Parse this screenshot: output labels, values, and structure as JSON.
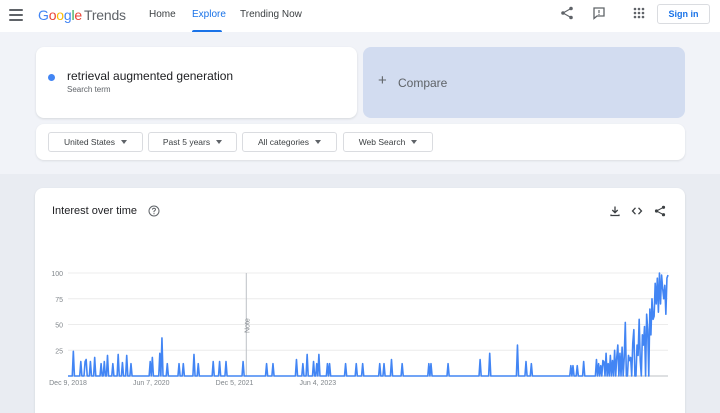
{
  "header": {
    "logo": {
      "letters": [
        "G",
        "o",
        "o",
        "g",
        "l",
        "e"
      ],
      "product": "Trends"
    },
    "tabs": [
      {
        "label": "Home",
        "active": false
      },
      {
        "label": "Explore",
        "active": true
      },
      {
        "label": "Trending Now",
        "active": false
      }
    ],
    "icons": [
      "share-icon",
      "feedback-icon",
      "apps-grid-icon"
    ],
    "signin_label": "Sign in"
  },
  "search": {
    "term": "retrieval augmented generation",
    "subtitle": "Search term",
    "term_color": "#4285f4",
    "compare_label": "Compare"
  },
  "filters": [
    {
      "label": "United States"
    },
    {
      "label": "Past 5 years"
    },
    {
      "label": "All categories"
    },
    {
      "label": "Web Search"
    }
  ],
  "interest_card": {
    "title": "Interest over time",
    "icons": [
      "help-circle-icon",
      "download-icon",
      "embed-code-icon",
      "share-icon"
    ]
  },
  "chart_data": {
    "type": "line",
    "title": "",
    "xlabel": "",
    "ylabel": "",
    "ylim": [
      0,
      100
    ],
    "yticks": [
      0,
      25,
      50,
      75,
      100
    ],
    "ytick_labels": [
      "25",
      "50",
      "75",
      "100"
    ],
    "x_tick_labels": [
      "Dec 9, 2018",
      "Jun 7, 2020",
      "Dec 5, 2021",
      "Jun 4, 2023"
    ],
    "x_tick_weeks": [
      0,
      78,
      156,
      234
    ],
    "note_label": "Note",
    "note_week": 167,
    "series_color": "#4285f4",
    "grid": true,
    "series": [
      {
        "values": [
          0,
          0,
          0,
          0,
          0,
          24,
          0,
          0,
          0,
          0,
          0,
          0,
          14,
          0,
          0,
          0,
          14,
          16,
          0,
          0,
          0,
          14,
          0,
          0,
          0,
          18,
          0,
          0,
          0,
          0,
          0,
          12,
          0,
          0,
          14,
          0,
          0,
          20,
          0,
          0,
          0,
          0,
          12,
          0,
          0,
          0,
          0,
          21,
          0,
          0,
          0,
          13,
          0,
          0,
          0,
          20,
          0,
          0,
          0,
          12,
          0,
          0,
          0,
          0,
          0,
          0,
          0,
          0,
          0,
          0,
          0,
          0,
          0,
          0,
          0,
          0,
          0,
          14,
          0,
          18,
          0,
          0,
          0,
          0,
          0,
          0,
          22,
          0,
          37,
          0,
          0,
          0,
          0,
          12,
          0,
          0,
          0,
          0,
          0,
          0,
          0,
          0,
          0,
          0,
          12,
          0,
          0,
          0,
          12,
          0,
          0,
          0,
          0,
          0,
          0,
          0,
          0,
          0,
          21,
          0,
          0,
          0,
          12,
          0,
          0,
          0,
          0,
          0,
          0,
          0,
          0,
          0,
          0,
          0,
          0,
          0,
          14,
          0,
          0,
          0,
          0,
          0,
          14,
          0,
          0,
          0,
          0,
          0,
          14,
          0,
          0,
          0,
          0,
          0,
          0,
          0,
          0,
          0,
          0,
          0,
          0,
          0,
          0,
          0,
          14,
          0,
          0,
          0,
          0,
          0,
          0,
          0,
          0,
          0,
          0,
          0,
          0,
          0,
          0,
          0,
          0,
          0,
          0,
          0,
          0,
          0,
          12,
          0,
          0,
          0,
          0,
          0,
          12,
          0,
          0,
          0,
          0,
          0,
          0,
          0,
          0,
          0,
          0,
          0,
          0,
          0,
          0,
          0,
          0,
          0,
          0,
          0,
          0,
          0,
          16,
          0,
          0,
          0,
          0,
          0,
          12,
          0,
          0,
          0,
          21,
          0,
          0,
          0,
          0,
          0,
          14,
          0,
          0,
          12,
          0,
          21,
          0,
          0,
          0,
          0,
          0,
          0,
          0,
          12,
          0,
          12,
          0,
          0,
          0,
          0,
          0,
          0,
          0,
          0,
          0,
          0,
          0,
          0,
          0,
          0,
          12,
          0,
          0,
          0,
          0,
          0,
          0,
          0,
          0,
          0,
          12,
          0,
          0,
          0,
          0,
          0,
          12,
          0,
          0,
          0,
          0,
          0,
          0,
          0,
          0,
          0,
          0,
          0,
          0,
          0,
          0,
          0,
          12,
          0,
          0,
          0,
          12,
          0,
          0,
          0,
          0,
          0,
          0,
          16,
          0,
          0,
          0,
          0,
          0,
          0,
          0,
          0,
          0,
          12,
          0,
          0,
          0,
          0,
          0,
          0,
          0,
          0,
          0,
          0,
          0,
          0,
          0,
          0,
          0,
          0,
          0,
          0,
          0,
          0,
          0,
          0,
          0,
          0,
          12,
          0,
          12,
          0,
          0,
          0,
          0,
          0,
          0,
          0,
          0,
          0,
          0,
          0,
          0,
          0,
          0,
          0,
          12,
          0,
          0,
          0,
          0,
          0,
          0,
          0,
          0,
          0,
          0,
          0,
          0,
          0,
          0,
          0,
          0,
          0,
          0,
          0,
          0,
          0,
          0,
          0,
          0,
          0,
          0,
          0,
          0,
          0,
          16,
          0,
          0,
          0,
          0,
          0,
          0,
          0,
          0,
          22,
          0,
          0,
          0,
          0,
          0,
          0,
          0,
          0,
          0,
          0,
          0,
          0,
          0,
          0,
          0,
          0,
          0,
          0,
          0,
          0,
          0,
          0,
          0,
          0,
          0,
          30,
          0,
          0,
          0,
          0,
          0,
          0,
          0,
          14,
          0,
          0,
          0,
          0,
          12,
          0,
          0,
          0,
          0,
          0,
          0,
          0,
          0,
          0,
          0,
          0,
          0,
          0,
          0,
          0,
          0,
          0,
          0,
          0,
          0,
          0,
          0,
          0,
          0,
          0,
          0,
          0,
          0,
          0,
          0,
          0,
          0,
          0,
          0,
          0,
          0,
          10,
          0,
          10,
          0,
          0,
          0,
          10,
          0,
          0,
          0,
          0,
          0,
          14,
          0,
          0,
          0,
          0,
          0,
          0,
          0,
          0,
          0,
          0,
          0,
          16,
          0,
          12,
          0,
          10,
          0,
          15,
          14,
          0,
          22,
          0,
          12,
          0,
          20,
          0,
          15,
          0,
          25,
          0,
          18,
          30,
          0,
          22,
          0,
          28,
          0,
          18,
          52,
          0,
          0,
          20,
          15,
          18,
          0,
          32,
          45,
          0,
          0,
          30,
          20,
          55,
          15,
          0,
          40,
          30,
          48,
          0,
          60,
          45,
          0,
          65,
          40,
          75,
          55,
          58,
          90,
          70,
          95,
          62,
          100,
          70,
          98,
          85,
          75,
          88,
          60,
          95,
          98
        ]
      }
    ]
  }
}
